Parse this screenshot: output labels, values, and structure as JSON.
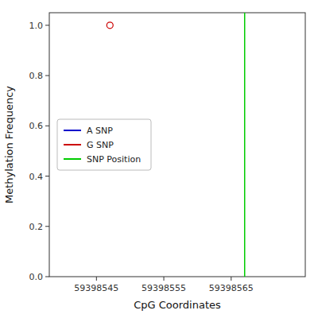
{
  "chart_data": {
    "type": "scatter",
    "xlabel": "CpG Coordinates",
    "ylabel": "Methylation Frequency",
    "series": [
      {
        "name": "A SNP",
        "type": "line",
        "color": "#0000cc",
        "x": [],
        "values": []
      },
      {
        "name": "G SNP",
        "type": "scatter",
        "color": "#cc0000",
        "marker": "circle",
        "x": [
          59398547
        ],
        "values": [
          1.0
        ]
      },
      {
        "name": "SNP Position",
        "type": "vline",
        "color": "#00cc00",
        "x": [
          59398567
        ]
      }
    ],
    "xlim": [
      59398538,
      59398576
    ],
    "ylim": [
      0.0,
      1.05
    ],
    "xticks": [
      59398545,
      59398555,
      59398565
    ],
    "yticks": [
      {
        "value": 0.0,
        "label": "0.0"
      },
      0.2,
      0.4,
      0.6,
      0.8,
      {
        "value": 1.0,
        "label": "1.0"
      }
    ],
    "grid": false,
    "legend": "left"
  }
}
